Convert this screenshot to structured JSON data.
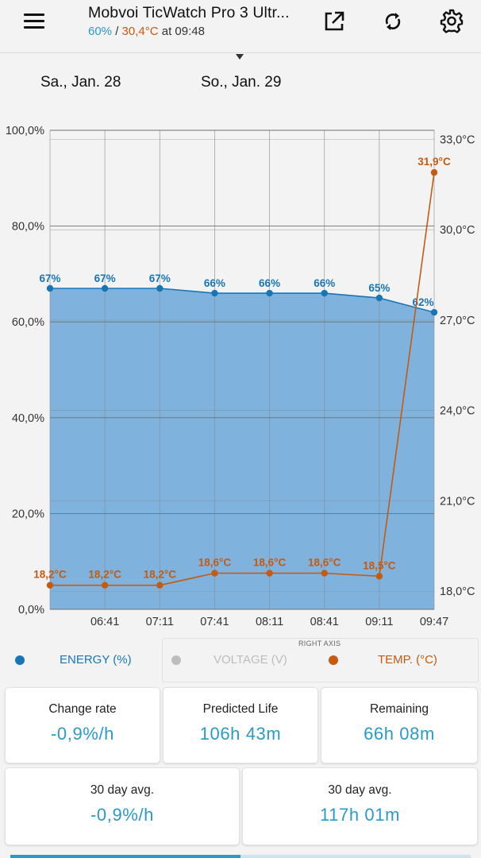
{
  "header": {
    "title": "Mobvoi TicWatch Pro 3 Ultr...",
    "level": "60%",
    "separator": " / ",
    "temp": "30,4°C",
    "time_text": " at 09:48"
  },
  "icons": {
    "menu": "hamburger-menu-icon",
    "external": "open-external-icon",
    "refresh": "refresh-icon",
    "settings": "gear-icon"
  },
  "dates": [
    "Sa., Jan. 28",
    "So., Jan. 29"
  ],
  "colors": {
    "energy": "#1976b6",
    "energy_fill": "#7fb3dd",
    "temp": "#c55a11",
    "voltage": "#bdbdbd",
    "value": "#2a9ac8"
  },
  "chart_data": {
    "type": "area",
    "x": [
      "06:11",
      "06:41",
      "07:11",
      "07:41",
      "08:11",
      "08:41",
      "09:11",
      "09:47"
    ],
    "x_tick_labels": [
      "",
      "06:41",
      "07:11",
      "07:41",
      "08:11",
      "08:41",
      "09:11",
      "09:47"
    ],
    "series": [
      {
        "name": "ENERGY (%)",
        "axis": "left",
        "values": [
          67,
          67,
          67,
          66,
          66,
          66,
          65,
          62
        ],
        "labels": [
          "67%",
          "67%",
          "67%",
          "66%",
          "66%",
          "66%",
          "65%",
          "62%"
        ]
      },
      {
        "name": "TEMP. (°C)",
        "axis": "right",
        "values": [
          18.2,
          18.2,
          18.2,
          18.6,
          18.6,
          18.6,
          18.5,
          31.9
        ],
        "labels": [
          "18,2°C",
          "18,2°C",
          "18,2°C",
          "18,6°C",
          "18,6°C",
          "18,6°C",
          "18,5°C",
          "31,9°C"
        ]
      }
    ],
    "left_axis": {
      "ylim": [
        0,
        100
      ],
      "ticks": [
        0,
        20,
        40,
        60,
        80,
        100
      ],
      "tick_labels": [
        "0,0%",
        "20,0%",
        "40,0%",
        "60,0%",
        "80,0%",
        "100,0%"
      ]
    },
    "right_axis": {
      "ylim": [
        17.4,
        33.3
      ],
      "ticks": [
        18,
        21,
        24,
        27,
        30,
        33
      ],
      "tick_labels": [
        "18,0°C",
        "21,0°C",
        "24,0°C",
        "27,0°C",
        "30,0°C",
        "33,0°C"
      ]
    },
    "grid": true
  },
  "legend": {
    "energy": "ENERGY (%)",
    "voltage": "VOLTAGE (V)",
    "temp": "TEMP. (°C)",
    "right_axis_caption": "RIGHT AXIS"
  },
  "stats": [
    {
      "title": "Change rate",
      "value": "-0,9%/h"
    },
    {
      "title": "Predicted Life",
      "value": "106h 43m"
    },
    {
      "title": "Remaining",
      "value": "66h 08m"
    },
    {
      "title": "30 day avg.",
      "value": "-0,9%/h"
    },
    {
      "title": "30 day avg.",
      "value": "117h 01m"
    }
  ]
}
